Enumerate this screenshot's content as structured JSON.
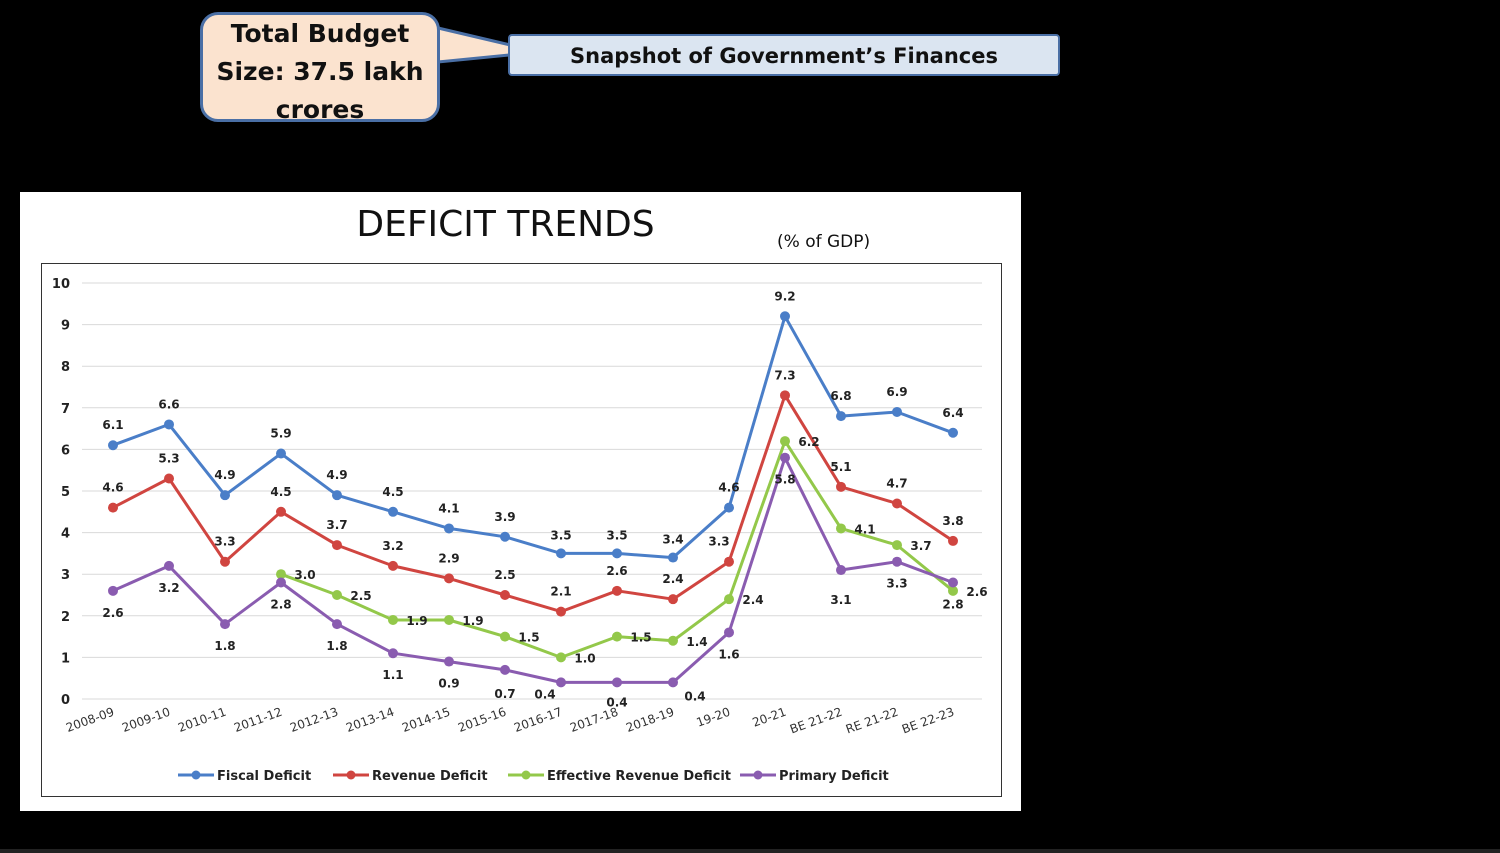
{
  "callout": {
    "lines": [
      "Total Budget",
      "Size: 37.5 lakh",
      "crores"
    ]
  },
  "banner": {
    "text": "Snapshot of Government’s Finances"
  },
  "chart_data": {
    "type": "line",
    "title": "DEFICIT TRENDS",
    "unit_label": "(% of GDP)",
    "ylim": [
      0,
      10
    ],
    "yticks": [
      0,
      1,
      2,
      3,
      4,
      5,
      6,
      7,
      8,
      9,
      10
    ],
    "grid": true,
    "legend_position": "bottom",
    "categories": [
      "2008-09",
      "2009-10",
      "2010-11",
      "2011-12",
      "2012-13",
      "2013-14",
      "2014-15",
      "2015-16",
      "2016-17",
      "2017-18",
      "2018-19",
      "19-20",
      "20-21",
      "BE 21-22",
      "RE 21-22",
      "BE 22-23"
    ],
    "series": [
      {
        "name": "Fiscal Deficit",
        "color": "#4a7ec8",
        "values": [
          6.1,
          6.6,
          4.9,
          5.9,
          4.9,
          4.5,
          4.1,
          3.9,
          3.5,
          3.5,
          3.4,
          4.6,
          9.2,
          6.8,
          6.9,
          6.4
        ]
      },
      {
        "name": "Revenue Deficit",
        "color": "#d04540",
        "values": [
          4.6,
          5.3,
          3.3,
          4.5,
          3.7,
          3.2,
          2.9,
          2.5,
          2.1,
          2.6,
          2.4,
          3.3,
          7.3,
          5.1,
          4.7,
          3.8
        ]
      },
      {
        "name": "Effective Revenue Deficit",
        "color": "#93c84a",
        "values": [
          null,
          null,
          null,
          3.0,
          2.5,
          1.9,
          1.9,
          1.5,
          1.0,
          1.5,
          1.4,
          2.4,
          6.2,
          4.1,
          3.7,
          2.6
        ]
      },
      {
        "name": "Primary Deficit",
        "color": "#8a5cb0",
        "values": [
          2.6,
          3.2,
          1.8,
          2.8,
          1.8,
          1.1,
          0.9,
          0.7,
          0.4,
          0.4,
          0.4,
          1.6,
          5.8,
          3.1,
          3.3,
          2.8
        ]
      }
    ],
    "value_labels": [
      [
        "6.1",
        "6.6",
        "4.9",
        "5.9",
        "4.9",
        "4.5",
        "4.1",
        "3.9",
        "3.5",
        "3.5",
        "3.4",
        "4.6",
        "9.2",
        "6.8",
        "6.9",
        "6.4"
      ],
      [
        "4.6",
        "5.3",
        "3.3",
        "4.5",
        "3.7",
        "3.2",
        "2.9",
        "2.5",
        "2.1",
        "2.6",
        "2.4",
        "3.3",
        "7.3",
        "5.1",
        "4.7",
        "3.8"
      ],
      [
        null,
        null,
        null,
        "3.0",
        "2.5",
        "1.9",
        "1.9",
        "1.5",
        "1.0",
        "1.5",
        "1.4",
        "2.4",
        "6.2",
        "4.1",
        "3.7",
        "2.6"
      ],
      [
        "2.6",
        "3.2",
        "1.8",
        "2.8",
        "1.8",
        "1.1",
        "0.9",
        "0.7",
        "0.4",
        "0.4",
        "0.4",
        "1.6",
        "5.8",
        "3.1",
        "3.3",
        "2.8"
      ]
    ]
  }
}
